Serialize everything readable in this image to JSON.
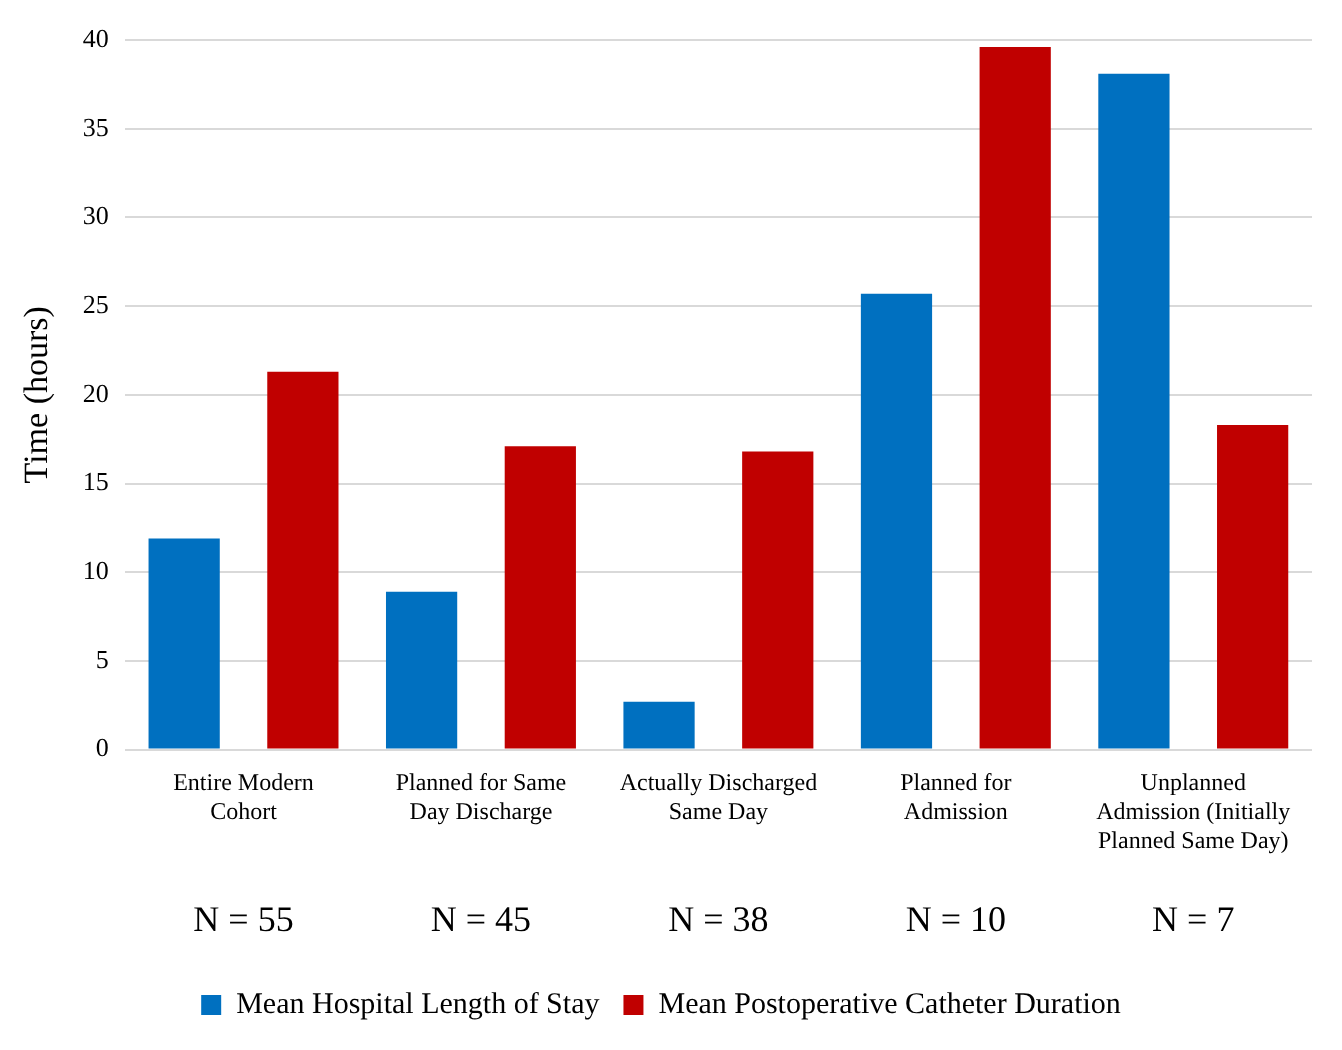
{
  "chart_data": {
    "type": "bar",
    "ylabel": "Time (hours)",
    "categories": [
      "Entire Modern Cohort",
      "Planned for Same Day Discharge",
      "Actually Discharged Same Day",
      "Planned for Admission",
      "Unplanned Admission (Initially Planned Same Day)"
    ],
    "series": [
      {
        "name": "Mean Hospital Length of Stay",
        "color": "#0070c0",
        "values": [
          11.9,
          8.9,
          2.7,
          25.7,
          38.1
        ]
      },
      {
        "name": "Mean Postoperative Catheter Duration",
        "color": "#c00000",
        "values": [
          21.3,
          17.1,
          16.8,
          39.6,
          18.3
        ]
      }
    ],
    "ylim": [
      0,
      40
    ],
    "yticks": [
      0,
      5,
      10,
      15,
      20,
      25,
      30,
      35,
      40
    ],
    "grid": "y",
    "legend": "bottom",
    "annotations": [
      "N = 55",
      "N = 45",
      "N = 38",
      "N = 10",
      "N = 7"
    ]
  }
}
